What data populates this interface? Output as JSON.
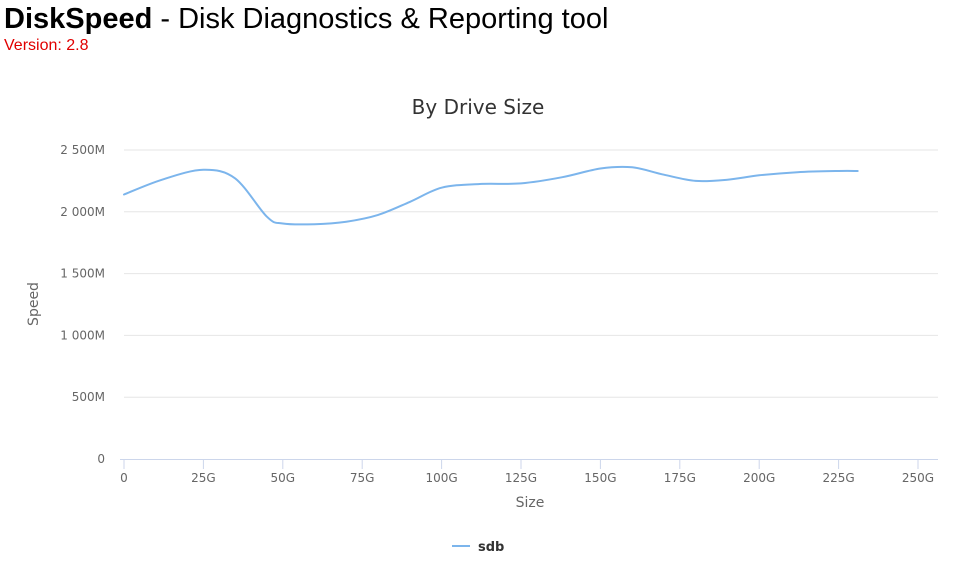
{
  "header": {
    "app_name": "DiskSpeed",
    "separator": " - ",
    "subtitle": "Disk Diagnostics & Reporting tool",
    "version": "Version: 2.8"
  },
  "colors": {
    "version_text": "#e00000",
    "series": "#7cb5ec",
    "grid": "#e6e6e6",
    "axis_line": "#ccd6eb",
    "tick_text": "#666666",
    "title_text": "#333333"
  },
  "chart_data": {
    "type": "line",
    "title": "By Drive Size",
    "xlabel": "Size",
    "ylabel": "Speed",
    "xlim": [
      0,
      250
    ],
    "ylim": [
      0,
      2500
    ],
    "x_ticks": [
      0,
      25,
      50,
      75,
      100,
      125,
      150,
      175,
      200,
      225,
      250
    ],
    "x_tick_labels": [
      "0",
      "25G",
      "50G",
      "75G",
      "100G",
      "125G",
      "150G",
      "175G",
      "200G",
      "225G",
      "250G"
    ],
    "y_ticks": [
      0,
      500,
      1000,
      1500,
      2000,
      2500
    ],
    "y_tick_labels": [
      "0",
      "500M",
      "1 000M",
      "1 500M",
      "2 000M",
      "2 500M"
    ],
    "grid": true,
    "legend_position": "bottom-center",
    "series": [
      {
        "name": "sdb",
        "color": "#7cb5ec",
        "x": [
          0,
          12,
          25,
          35,
          45,
          50,
          60,
          70,
          80,
          90,
          100,
          112,
          125,
          138,
          150,
          160,
          170,
          180,
          190,
          200,
          212,
          225,
          231
        ],
        "y": [
          2140,
          2260,
          2340,
          2270,
          1960,
          1905,
          1900,
          1920,
          1975,
          2080,
          2195,
          2225,
          2230,
          2280,
          2350,
          2360,
          2300,
          2250,
          2260,
          2295,
          2320,
          2330,
          2330
        ]
      }
    ]
  }
}
